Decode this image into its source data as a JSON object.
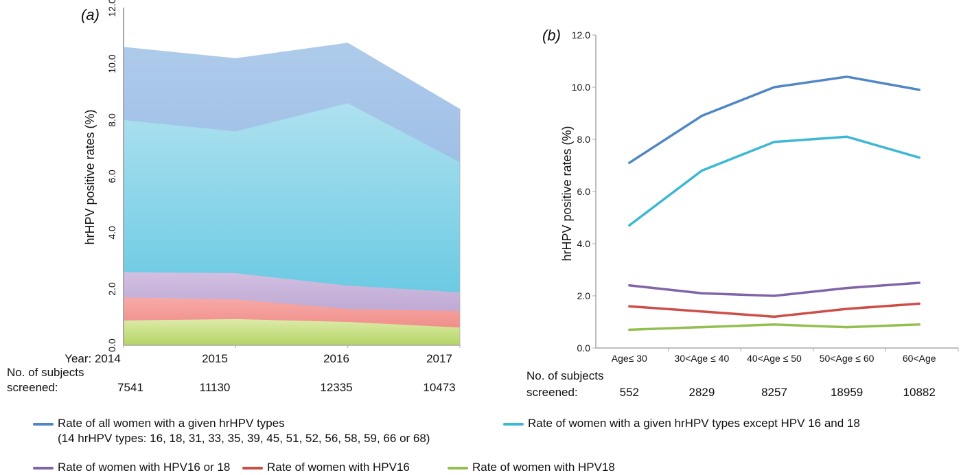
{
  "chart_data": [
    {
      "type": "area",
      "panel_label": "(a)",
      "panel_letter": "a",
      "ylabel": "hrHPV positive rates (%)",
      "ylim": [
        0,
        12
      ],
      "yticks": [
        "0.0",
        "2.0",
        "4.0",
        "6.0",
        "8.0",
        "10.0",
        "12.0"
      ],
      "x_prefix": "Year: ",
      "categories": [
        "2014",
        "2015",
        "2016",
        "2017"
      ],
      "subjects_label_line1": "No. of subjects",
      "subjects_label_line2": "screened:",
      "subjects_screened": [
        "7541",
        "11130",
        "12335",
        "10473"
      ],
      "stacking": "overlapping",
      "series": [
        {
          "name": "Rate of all women with a given hrHPV types",
          "color": "#8FB4E0",
          "values": [
            10.6,
            10.2,
            10.75,
            8.4
          ]
        },
        {
          "name": "Rate of women with a given hrHPV types except HPV 16 and 18",
          "color": "#5EC6E0",
          "values": [
            8.0,
            7.6,
            8.6,
            6.5
          ]
        },
        {
          "name": "Rate of women with HPV16 or 18",
          "color": "#B9A3D3",
          "values": [
            2.6,
            2.56,
            2.12,
            1.88
          ]
        },
        {
          "name": "Rate of women with HPV16",
          "color": "#F08F8A",
          "values": [
            1.7,
            1.63,
            1.29,
            1.22
          ]
        },
        {
          "name": "Rate of women with HPV18",
          "color": "#C4DE85",
          "values": [
            0.88,
            0.93,
            0.83,
            0.63
          ]
        }
      ]
    },
    {
      "type": "line",
      "panel_label": "(b)",
      "panel_letter": "b",
      "ylabel": "hrHPV positive rates (%)",
      "ylim": [
        0,
        12
      ],
      "yticks": [
        "0.0",
        "2.0",
        "4.0",
        "6.0",
        "8.0",
        "10.0",
        "12.0"
      ],
      "categories": [
        "Age≤ 30",
        "30<Age ≤ 40",
        "40<Age ≤ 50",
        "50<Age ≤ 60",
        "60<Age"
      ],
      "subjects_label_line1": "No. of subjects",
      "subjects_label_line2": "screened:",
      "subjects_screened": [
        "552",
        "2829",
        "8257",
        "18959",
        "10882"
      ],
      "series": [
        {
          "name": "Rate of all women with a given hrHPV types",
          "color": "#4F86C6",
          "values": [
            7.1,
            8.9,
            10.0,
            10.4,
            9.9
          ]
        },
        {
          "name": "Rate of women with a given hrHPV types except HPV 16 and 18",
          "color": "#3DB8D4",
          "values": [
            4.7,
            6.8,
            7.9,
            8.1,
            7.3
          ]
        },
        {
          "name": "Rate of women with HPV16 or 18",
          "color": "#8064A8",
          "values": [
            2.4,
            2.1,
            2.0,
            2.3,
            2.5
          ]
        },
        {
          "name": "Rate of women with HPV16",
          "color": "#CF4D48",
          "values": [
            1.6,
            1.4,
            1.2,
            1.5,
            1.7
          ]
        },
        {
          "name": "Rate of women with HPV18",
          "color": "#94BE50",
          "values": [
            0.7,
            0.8,
            0.9,
            0.8,
            0.9
          ]
        }
      ]
    }
  ],
  "legend": {
    "all_line1": "Rate of all women with a given hrHPV types",
    "all_line2": "(14 hrHPV types: 16, 18, 31, 33, 35, 39, 45, 51, 52, 56, 58, 59, 66 or 68)",
    "except": "Rate of women with a given hrHPV types except HPV 16 and 18",
    "hpv16or18": "Rate of women with HPV16 or 18",
    "hpv16": "Rate of women with HPV16",
    "hpv18": "Rate of women with HPV18",
    "colors": {
      "all": "#4F86C6",
      "except": "#3DB8D4",
      "hpv16or18": "#8064A8",
      "hpv16": "#CF4D48",
      "hpv18": "#94BE50"
    }
  }
}
